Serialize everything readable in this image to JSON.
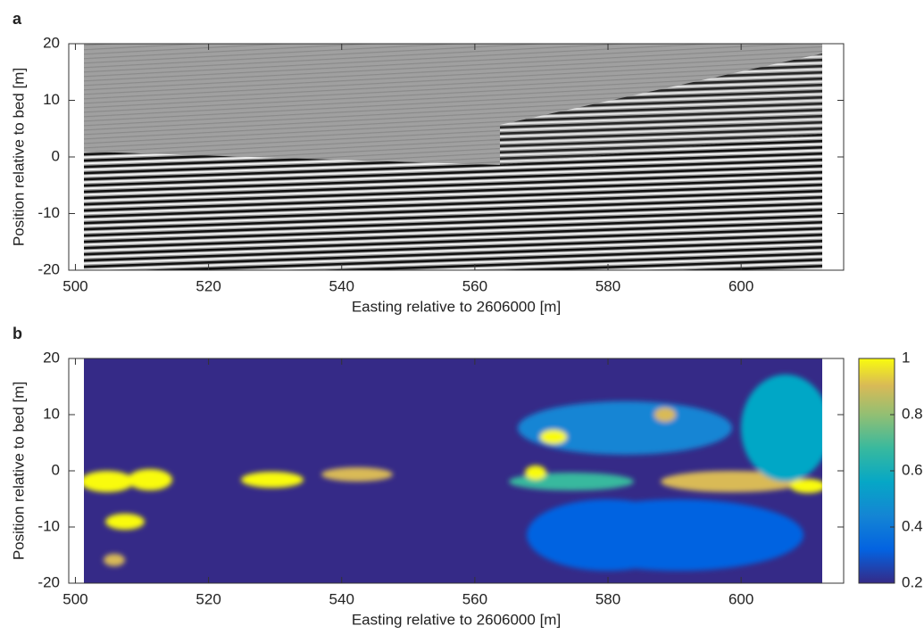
{
  "chart_data": [
    {
      "type": "image",
      "panel_label": "a",
      "xlabel": "Easting relative to 2606000 [m]",
      "ylabel": "Position relative to bed [m]",
      "xlim": [
        499,
        615.4
      ],
      "ylim": [
        -20,
        20
      ],
      "xticks": [
        500,
        520,
        540,
        560,
        580,
        600
      ],
      "yticks": [
        -20,
        -10,
        0,
        10,
        20
      ],
      "colormap": "gray"
    },
    {
      "type": "heatmap",
      "panel_label": "b",
      "xlabel": "Easting relative to 2606000 [m]",
      "ylabel": "Position relative to bed [m]",
      "xlim": [
        499,
        615.4
      ],
      "ylim": [
        -20,
        20
      ],
      "xticks": [
        500,
        520,
        540,
        560,
        580,
        600
      ],
      "yticks": [
        -20,
        -10,
        0,
        10,
        20
      ],
      "colormap": "parula",
      "clim": [
        0.2,
        1
      ],
      "cticks": [
        0.2,
        0.4,
        0.6,
        0.8,
        1
      ]
    }
  ]
}
